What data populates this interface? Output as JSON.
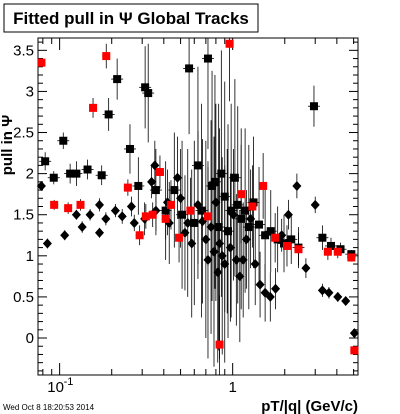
{
  "chart_data": {
    "type": "scatter",
    "title": "Fitted pull in Ψ   Global Tracks",
    "xlabel": "pT/|q| (GeV/c)",
    "ylabel": "pull in Ψ",
    "xscale": "log",
    "xlim": [
      0.075,
      5.3
    ],
    "ylim": [
      -0.45,
      3.65
    ],
    "x_tick_labels": [
      "10",
      "1"
    ],
    "x_tick_label_sup": "-1",
    "y_tick_labels": [
      "0",
      "0.5",
      "1",
      "1.5",
      "2",
      "2.5",
      "3",
      "3.5"
    ],
    "timestamp": "Wed Oct  8 18:20:53 2014",
    "grid": false,
    "legend": "none",
    "series": [
      {
        "marker": "square",
        "color": "#000000",
        "points": [
          [
            0.0825,
            2.15,
            0.11
          ],
          [
            0.0925,
            1.95,
            0.08
          ],
          [
            0.105,
            2.4,
            0.1
          ],
          [
            0.115,
            2.0,
            0.12
          ],
          [
            0.125,
            2.0,
            0.15
          ],
          [
            0.145,
            2.05,
            0.12
          ],
          [
            0.175,
            1.98,
            0.12
          ],
          [
            0.192,
            2.72,
            0.2
          ],
          [
            0.215,
            3.15,
            0.25
          ],
          [
            0.255,
            2.3,
            0.3
          ],
          [
            0.285,
            1.85,
            0.35
          ],
          [
            0.312,
            3.05,
            0.5
          ],
          [
            0.325,
            2.98,
            0.6
          ],
          [
            0.36,
            1.8,
            0.5
          ],
          [
            0.41,
            1.55,
            0.6
          ],
          [
            0.46,
            1.8,
            0.7
          ],
          [
            0.51,
            1.5,
            0.9
          ],
          [
            0.56,
            3.28,
            0.8
          ],
          [
            0.6,
            1.4,
            1.0
          ],
          [
            0.63,
            2.1,
            1.2
          ],
          [
            0.66,
            1.55,
            1.3
          ],
          [
            0.72,
            3.4,
            1.1
          ],
          [
            0.76,
            1.85,
            1.4
          ],
          [
            0.79,
            1.9,
            1.3
          ],
          [
            0.83,
            1.35,
            1.5
          ],
          [
            0.86,
            2.0,
            1.5
          ],
          [
            0.9,
            1.72,
            1.4
          ],
          [
            0.94,
            1.3,
            1.3
          ],
          [
            0.98,
            1.55,
            1.3
          ],
          [
            1.03,
            1.95,
            1.2
          ],
          [
            1.07,
            1.62,
            1.2
          ],
          [
            1.12,
            1.45,
            1.1
          ],
          [
            1.18,
            1.55,
            1.0
          ],
          [
            1.24,
            1.35,
            1.0
          ],
          [
            1.32,
            1.65,
            0.8
          ],
          [
            1.42,
            1.38,
            0.7
          ],
          [
            1.54,
            1.25,
            0.6
          ],
          [
            1.66,
            1.3,
            0.5
          ],
          [
            1.82,
            1.2,
            0.4
          ],
          [
            1.98,
            1.15,
            0.35
          ],
          [
            2.18,
            1.2,
            0.3
          ],
          [
            2.4,
            1.1,
            0.25
          ],
          [
            2.95,
            2.82,
            0.25
          ],
          [
            3.3,
            1.22,
            0.15
          ],
          [
            3.7,
            1.12,
            0.1
          ],
          [
            4.2,
            1.08,
            0.08
          ],
          [
            4.85,
            1.02,
            0.05
          ]
        ]
      },
      {
        "marker": "diamond",
        "color": "#000000",
        "points": [
          [
            0.0785,
            1.85,
            0.05
          ],
          [
            0.085,
            1.15,
            0.06
          ],
          [
            0.107,
            1.25,
            0.06
          ],
          [
            0.125,
            1.5,
            0.06
          ],
          [
            0.135,
            1.35,
            0.07
          ],
          [
            0.15,
            1.5,
            0.07
          ],
          [
            0.17,
            1.28,
            0.06
          ],
          [
            0.17,
            1.62,
            0.08
          ],
          [
            0.185,
            1.45,
            0.08
          ],
          [
            0.21,
            1.55,
            0.08
          ],
          [
            0.23,
            1.48,
            0.09
          ],
          [
            0.26,
            1.6,
            0.12
          ],
          [
            0.27,
            1.4,
            0.1
          ],
          [
            0.31,
            1.45,
            0.2
          ],
          [
            0.34,
            1.9,
            0.2
          ],
          [
            0.355,
            2.1,
            0.3
          ],
          [
            0.36,
            1.55,
            0.3
          ],
          [
            0.42,
            1.65,
            0.4
          ],
          [
            0.43,
            1.4,
            0.5
          ],
          [
            0.48,
            1.95,
            0.5
          ],
          [
            0.5,
            1.7,
            0.6
          ],
          [
            0.53,
            1.28,
            0.7
          ],
          [
            0.55,
            1.4,
            0.9
          ],
          [
            0.58,
            1.15,
            0.9
          ],
          [
            0.63,
            1.62,
            0.9
          ],
          [
            0.67,
            1.42,
            1.0
          ],
          [
            0.7,
            1.2,
            1.2
          ],
          [
            0.72,
            0.95,
            1.2
          ],
          [
            0.75,
            1.35,
            1.3
          ],
          [
            0.78,
            1.05,
            1.4
          ],
          [
            0.8,
            1.65,
            1.2
          ],
          [
            0.82,
            0.8,
            1.1
          ],
          [
            0.84,
            1.15,
            1.4
          ],
          [
            0.87,
            1.0,
            1.2
          ],
          [
            0.9,
            0.9,
            1.2
          ],
          [
            0.93,
            1.3,
            1.0
          ],
          [
            0.97,
            1.1,
            0.9
          ],
          [
            1.01,
            1.5,
            0.8
          ],
          [
            1.05,
            0.95,
            0.8
          ],
          [
            1.1,
            0.75,
            0.8
          ],
          [
            1.15,
            0.95,
            0.7
          ],
          [
            1.2,
            1.2,
            0.6
          ],
          [
            1.27,
            1.45,
            0.6
          ],
          [
            1.35,
            0.9,
            0.5
          ],
          [
            1.44,
            0.65,
            0.4
          ],
          [
            1.54,
            0.55,
            0.35
          ],
          [
            1.65,
            0.5,
            0.3
          ],
          [
            1.77,
            0.6,
            0.25
          ],
          [
            1.92,
            1.25,
            0.2
          ],
          [
            2.1,
            1.5,
            0.18
          ],
          [
            2.35,
            1.85,
            0.15
          ],
          [
            2.65,
            0.85,
            0.12
          ],
          [
            3.0,
            1.62,
            0.1
          ],
          [
            3.3,
            0.58,
            0.08
          ],
          [
            3.6,
            0.55,
            0.07
          ],
          [
            4.05,
            0.5,
            0.06
          ],
          [
            4.5,
            0.45,
            0.05
          ],
          [
            5.05,
            0.06,
            0.04
          ]
        ]
      },
      {
        "marker": "square",
        "color": "#ff0000",
        "points": [
          [
            0.0785,
            3.35,
            0.05
          ],
          [
            0.093,
            1.62,
            0.06
          ],
          [
            0.112,
            1.58,
            0.07
          ],
          [
            0.132,
            1.62,
            0.07
          ],
          [
            0.156,
            2.8,
            0.12
          ],
          [
            0.186,
            3.43,
            0.15
          ],
          [
            0.248,
            1.83,
            0.1
          ],
          [
            0.29,
            1.25,
            0.12
          ],
          [
            0.315,
            1.48,
            0.15
          ],
          [
            0.345,
            1.5,
            0.15
          ],
          [
            0.38,
            2.02,
            0.2
          ],
          [
            0.41,
            1.45,
            0.25
          ],
          [
            0.44,
            1.62,
            0.3
          ],
          [
            0.49,
            1.22,
            0.3
          ],
          [
            0.57,
            1.55,
            0.4
          ],
          [
            0.72,
            1.48,
            0.6
          ],
          [
            0.84,
            -0.08,
            0.6
          ],
          [
            0.96,
            3.58,
            0.7
          ],
          [
            1.12,
            1.75,
            0.6
          ],
          [
            1.3,
            1.6,
            0.5
          ],
          [
            1.5,
            1.85,
            0.4
          ],
          [
            1.76,
            1.22,
            0.3
          ],
          [
            2.06,
            1.12,
            0.25
          ],
          [
            2.4,
            1.08,
            0.2
          ],
          [
            3.55,
            1.05,
            0.1
          ],
          [
            4.05,
            1.05,
            0.08
          ],
          [
            4.85,
            0.98,
            0.05
          ],
          [
            5.05,
            -0.15,
            0.05
          ]
        ]
      }
    ]
  }
}
